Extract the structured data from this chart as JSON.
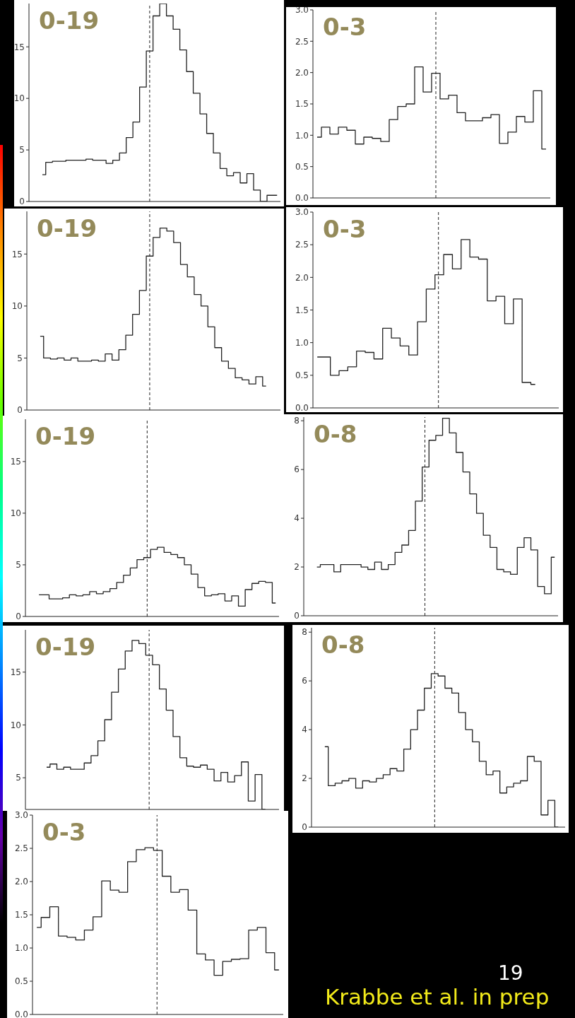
{
  "chart_data": [
    {
      "type": "step",
      "color": "#222222",
      "categories": [
        null,
        null,
        null,
        null,
        null,
        null,
        null,
        null,
        null,
        null,
        null,
        null,
        null,
        null,
        null,
        null,
        null,
        null,
        null,
        null,
        null,
        null,
        null,
        null,
        null,
        null,
        null,
        null,
        null,
        null,
        null,
        null,
        null,
        null,
        null,
        null
      ],
      "values": [
        2.6,
        3.8,
        3.9,
        3.9,
        4.0,
        4.0,
        4.0,
        4.1,
        4.0,
        4.0,
        3.7,
        4.0,
        4.7,
        6.2,
        7.7,
        11.1,
        14.6,
        18.0,
        19.2,
        18.0,
        16.7,
        14.7,
        12.6,
        10.5,
        8.5,
        6.6,
        4.7,
        3.2,
        2.5,
        2.8,
        1.8,
        2.7,
        1.1,
        0,
        0.6,
        0.6
      ],
      "ylim": [
        0,
        19.2
      ],
      "yticks": [
        0,
        5,
        10,
        15
      ],
      "tick_labels": "y",
      "annotations": [
        "0-19"
      ]
    },
    {
      "type": "step",
      "color": "#222222",
      "categories": [
        null,
        null,
        null,
        null,
        null,
        null,
        null,
        null,
        null,
        null,
        null,
        null,
        null,
        null,
        null,
        null,
        null,
        null,
        null,
        null,
        null,
        null,
        null,
        null,
        null,
        null,
        null,
        null
      ],
      "values": [
        0.97,
        1.13,
        1.02,
        1.13,
        1.08,
        0.86,
        0.97,
        0.95,
        0.9,
        1.25,
        1.46,
        1.5,
        2.09,
        1.69,
        1.99,
        1.58,
        1.64,
        1.36,
        1.23,
        1.23,
        1.28,
        1.33,
        0.87,
        1.05,
        1.3,
        1.21,
        1.71,
        0.78
      ],
      "ylim": [
        0,
        3.0
      ],
      "yticks": [
        {
          "value": 0,
          "label": "0.0"
        },
        {
          "value": 0.5,
          "label": "0.5"
        },
        {
          "value": 1,
          "label": "1.0"
        },
        {
          "value": 1.5,
          "label": "1.5"
        },
        {
          "value": 2,
          "label": "2.0"
        },
        {
          "value": 2.5,
          "label": "2.5"
        },
        {
          "value": 3,
          "label": "3.0"
        }
      ],
      "tick_labels": "y",
      "annotations": [
        "0-3"
      ]
    },
    {
      "type": "step",
      "color": "#222222",
      "categories": [
        null,
        null,
        null,
        null,
        null,
        null,
        null,
        null,
        null,
        null,
        null,
        null,
        null,
        null,
        null,
        null,
        null,
        null,
        null,
        null,
        null,
        null,
        null,
        null,
        null,
        null,
        null,
        null,
        null,
        null,
        null,
        null,
        null,
        null
      ],
      "values": [
        7.1,
        5.0,
        4.9,
        5.0,
        4.8,
        5.0,
        4.7,
        4.7,
        4.8,
        4.7,
        5.4,
        4.8,
        5.8,
        7.2,
        9.2,
        11.5,
        14.8,
        16.6,
        17.5,
        17.2,
        16.1,
        14.0,
        12.8,
        11.1,
        10.0,
        8.0,
        6.0,
        4.7,
        4.0,
        3.1,
        2.9,
        2.5,
        3.2,
        2.3
      ],
      "ylim": [
        0,
        19.1
      ],
      "yticks": [
        0,
        5,
        10,
        15
      ],
      "tick_labels": "y",
      "annotations": [
        "0-19"
      ]
    },
    {
      "type": "step",
      "color": "#222222",
      "categories": [
        null,
        null,
        null,
        null,
        null,
        null,
        null,
        null,
        null,
        null,
        null,
        null,
        null,
        null,
        null,
        null,
        null,
        null,
        null,
        null,
        null,
        null,
        null,
        null,
        null,
        null
      ],
      "values": [
        0.78,
        0.78,
        0.5,
        0.57,
        0.63,
        0.87,
        0.85,
        0.75,
        1.22,
        1.07,
        0.95,
        0.81,
        1.32,
        1.82,
        2.04,
        2.35,
        2.13,
        2.58,
        2.31,
        2.28,
        1.64,
        1.71,
        1.29,
        1.67,
        0.39,
        0.36
      ],
      "ylim": [
        0,
        3.0
      ],
      "yticks": [
        {
          "value": 0,
          "label": "0.0"
        },
        {
          "value": 0.5,
          "label": "0.5"
        },
        {
          "value": 1,
          "label": "1.0"
        },
        {
          "value": 1.5,
          "label": "1.5"
        },
        {
          "value": 2,
          "label": "2.0"
        },
        {
          "value": 2.5,
          "label": "2.5"
        },
        {
          "value": 3,
          "label": "3.0"
        }
      ],
      "tick_labels": "y",
      "annotations": [
        "0-3"
      ]
    },
    {
      "type": "step",
      "color": "#222222",
      "categories": [
        null,
        null,
        null,
        null,
        null,
        null,
        null,
        null,
        null,
        null,
        null,
        null,
        null,
        null,
        null,
        null,
        null,
        null,
        null,
        null,
        null,
        null,
        null,
        null,
        null,
        null,
        null,
        null,
        null,
        null,
        null,
        null,
        null,
        null,
        null,
        null
      ],
      "values": [
        2.1,
        2.1,
        1.7,
        1.7,
        1.8,
        2.1,
        2.0,
        2.1,
        2.4,
        2.2,
        2.4,
        2.7,
        3.3,
        4.0,
        4.7,
        5.5,
        5.7,
        6.5,
        6.7,
        6.2,
        6.0,
        5.7,
        5.0,
        4.1,
        2.8,
        2.0,
        2.1,
        2.2,
        1.5,
        2.0,
        1.0,
        2.6,
        3.2,
        3.4,
        3.3,
        1.3
      ],
      "ylim": [
        0,
        19.1
      ],
      "yticks": [
        0,
        5,
        10,
        15
      ],
      "tick_labels": "y",
      "annotations": [
        "0-19"
      ]
    },
    {
      "type": "step",
      "color": "#222222",
      "categories": [
        null,
        null,
        null,
        null,
        null,
        null,
        null,
        null,
        null,
        null,
        null,
        null,
        null,
        null,
        null,
        null,
        null,
        null,
        null,
        null,
        null,
        null,
        null,
        null,
        null,
        null,
        null,
        null,
        null,
        null,
        null,
        null,
        null,
        null,
        null,
        null
      ],
      "values": [
        2.0,
        2.1,
        2.1,
        1.8,
        2.1,
        2.1,
        2.1,
        2.0,
        1.9,
        2.2,
        1.9,
        2.1,
        2.6,
        2.9,
        3.5,
        4.7,
        6.1,
        7.2,
        7.4,
        8.1,
        7.5,
        6.7,
        5.9,
        5.0,
        4.2,
        3.3,
        2.8,
        1.9,
        1.8,
        1.7,
        2.8,
        3.2,
        2.7,
        1.2,
        0.9,
        2.4
      ],
      "ylim": [
        0,
        8.15
      ],
      "yticks": [
        0,
        2,
        4,
        6,
        8
      ],
      "tick_labels": "y",
      "annotations": [
        "0-8"
      ]
    },
    {
      "type": "step",
      "color": "#222222",
      "categories": [
        null,
        null,
        null,
        null,
        null,
        null,
        null,
        null,
        null,
        null,
        null,
        null,
        null,
        null,
        null,
        null,
        null,
        null,
        null,
        null,
        null,
        null,
        null,
        null,
        null,
        null,
        null,
        null,
        null,
        null,
        null,
        null,
        null
      ],
      "values": [
        6.0,
        6.3,
        5.8,
        6.0,
        5.8,
        5.8,
        6.4,
        7.1,
        8.5,
        10.5,
        13.1,
        15.3,
        17.0,
        18.0,
        17.7,
        16.6,
        15.7,
        13.4,
        11.4,
        8.9,
        6.9,
        6.1,
        6.0,
        6.2,
        5.8,
        4.7,
        5.5,
        4.6,
        5.2,
        6.5,
        2.8,
        5.3,
        2.0
      ],
      "ylim": [
        2,
        19
      ],
      "yticks": [
        5,
        10,
        15
      ],
      "tick_labels": "y",
      "annotations": [
        "0-19"
      ]
    },
    {
      "type": "step",
      "color": "#222222",
      "categories": [
        null,
        null,
        null,
        null,
        null,
        null,
        null,
        null,
        null,
        null,
        null,
        null,
        null,
        null,
        null,
        null,
        null,
        null,
        null,
        null,
        null,
        null,
        null,
        null,
        null,
        null,
        null,
        null,
        null,
        null,
        null,
        null,
        null,
        null,
        null
      ],
      "values": [
        3.3,
        1.7,
        1.8,
        1.9,
        2.0,
        1.6,
        1.9,
        1.85,
        2.0,
        2.15,
        2.4,
        2.3,
        3.2,
        4.0,
        4.8,
        5.7,
        6.3,
        6.2,
        5.7,
        5.5,
        4.7,
        4.0,
        3.5,
        2.7,
        2.15,
        2.3,
        1.4,
        1.65,
        1.8,
        1.9,
        2.9,
        2.7,
        0.5,
        1.1,
        0
      ],
      "ylim": [
        0,
        8.18
      ],
      "yticks": [
        0,
        2,
        4,
        6,
        8
      ],
      "tick_labels": "y",
      "annotations": [
        "0-8"
      ]
    },
    {
      "type": "step",
      "color": "#222222",
      "categories": [
        null,
        null,
        null,
        null,
        null,
        null,
        null,
        null,
        null,
        null,
        null,
        null,
        null,
        null,
        null,
        null,
        null,
        null,
        null,
        null,
        null,
        null,
        null,
        null,
        null,
        null,
        null,
        null,
        null
      ],
      "values": [
        1.31,
        1.46,
        1.62,
        1.18,
        1.16,
        1.12,
        1.27,
        1.47,
        2.01,
        1.87,
        1.84,
        2.3,
        2.48,
        2.51,
        2.47,
        2.08,
        1.84,
        1.88,
        1.57,
        0.91,
        0.82,
        0.59,
        0.8,
        0.83,
        0.84,
        1.27,
        1.31,
        0.93,
        0.67
      ],
      "ylim": [
        0,
        3.0
      ],
      "yticks": [
        {
          "value": 0,
          "label": "0.0"
        },
        {
          "value": 0.5,
          "label": "0.5"
        },
        {
          "value": 1,
          "label": "1.0"
        },
        {
          "value": 1.5,
          "label": "1.5"
        },
        {
          "value": 2,
          "label": "2.0"
        },
        {
          "value": 2.5,
          "label": "2.5"
        },
        {
          "value": 3,
          "label": "3.0"
        }
      ],
      "tick_labels": "y",
      "annotations": [
        "0-3",
        "19",
        "Krabbe et al. in prep"
      ]
    }
  ]
}
